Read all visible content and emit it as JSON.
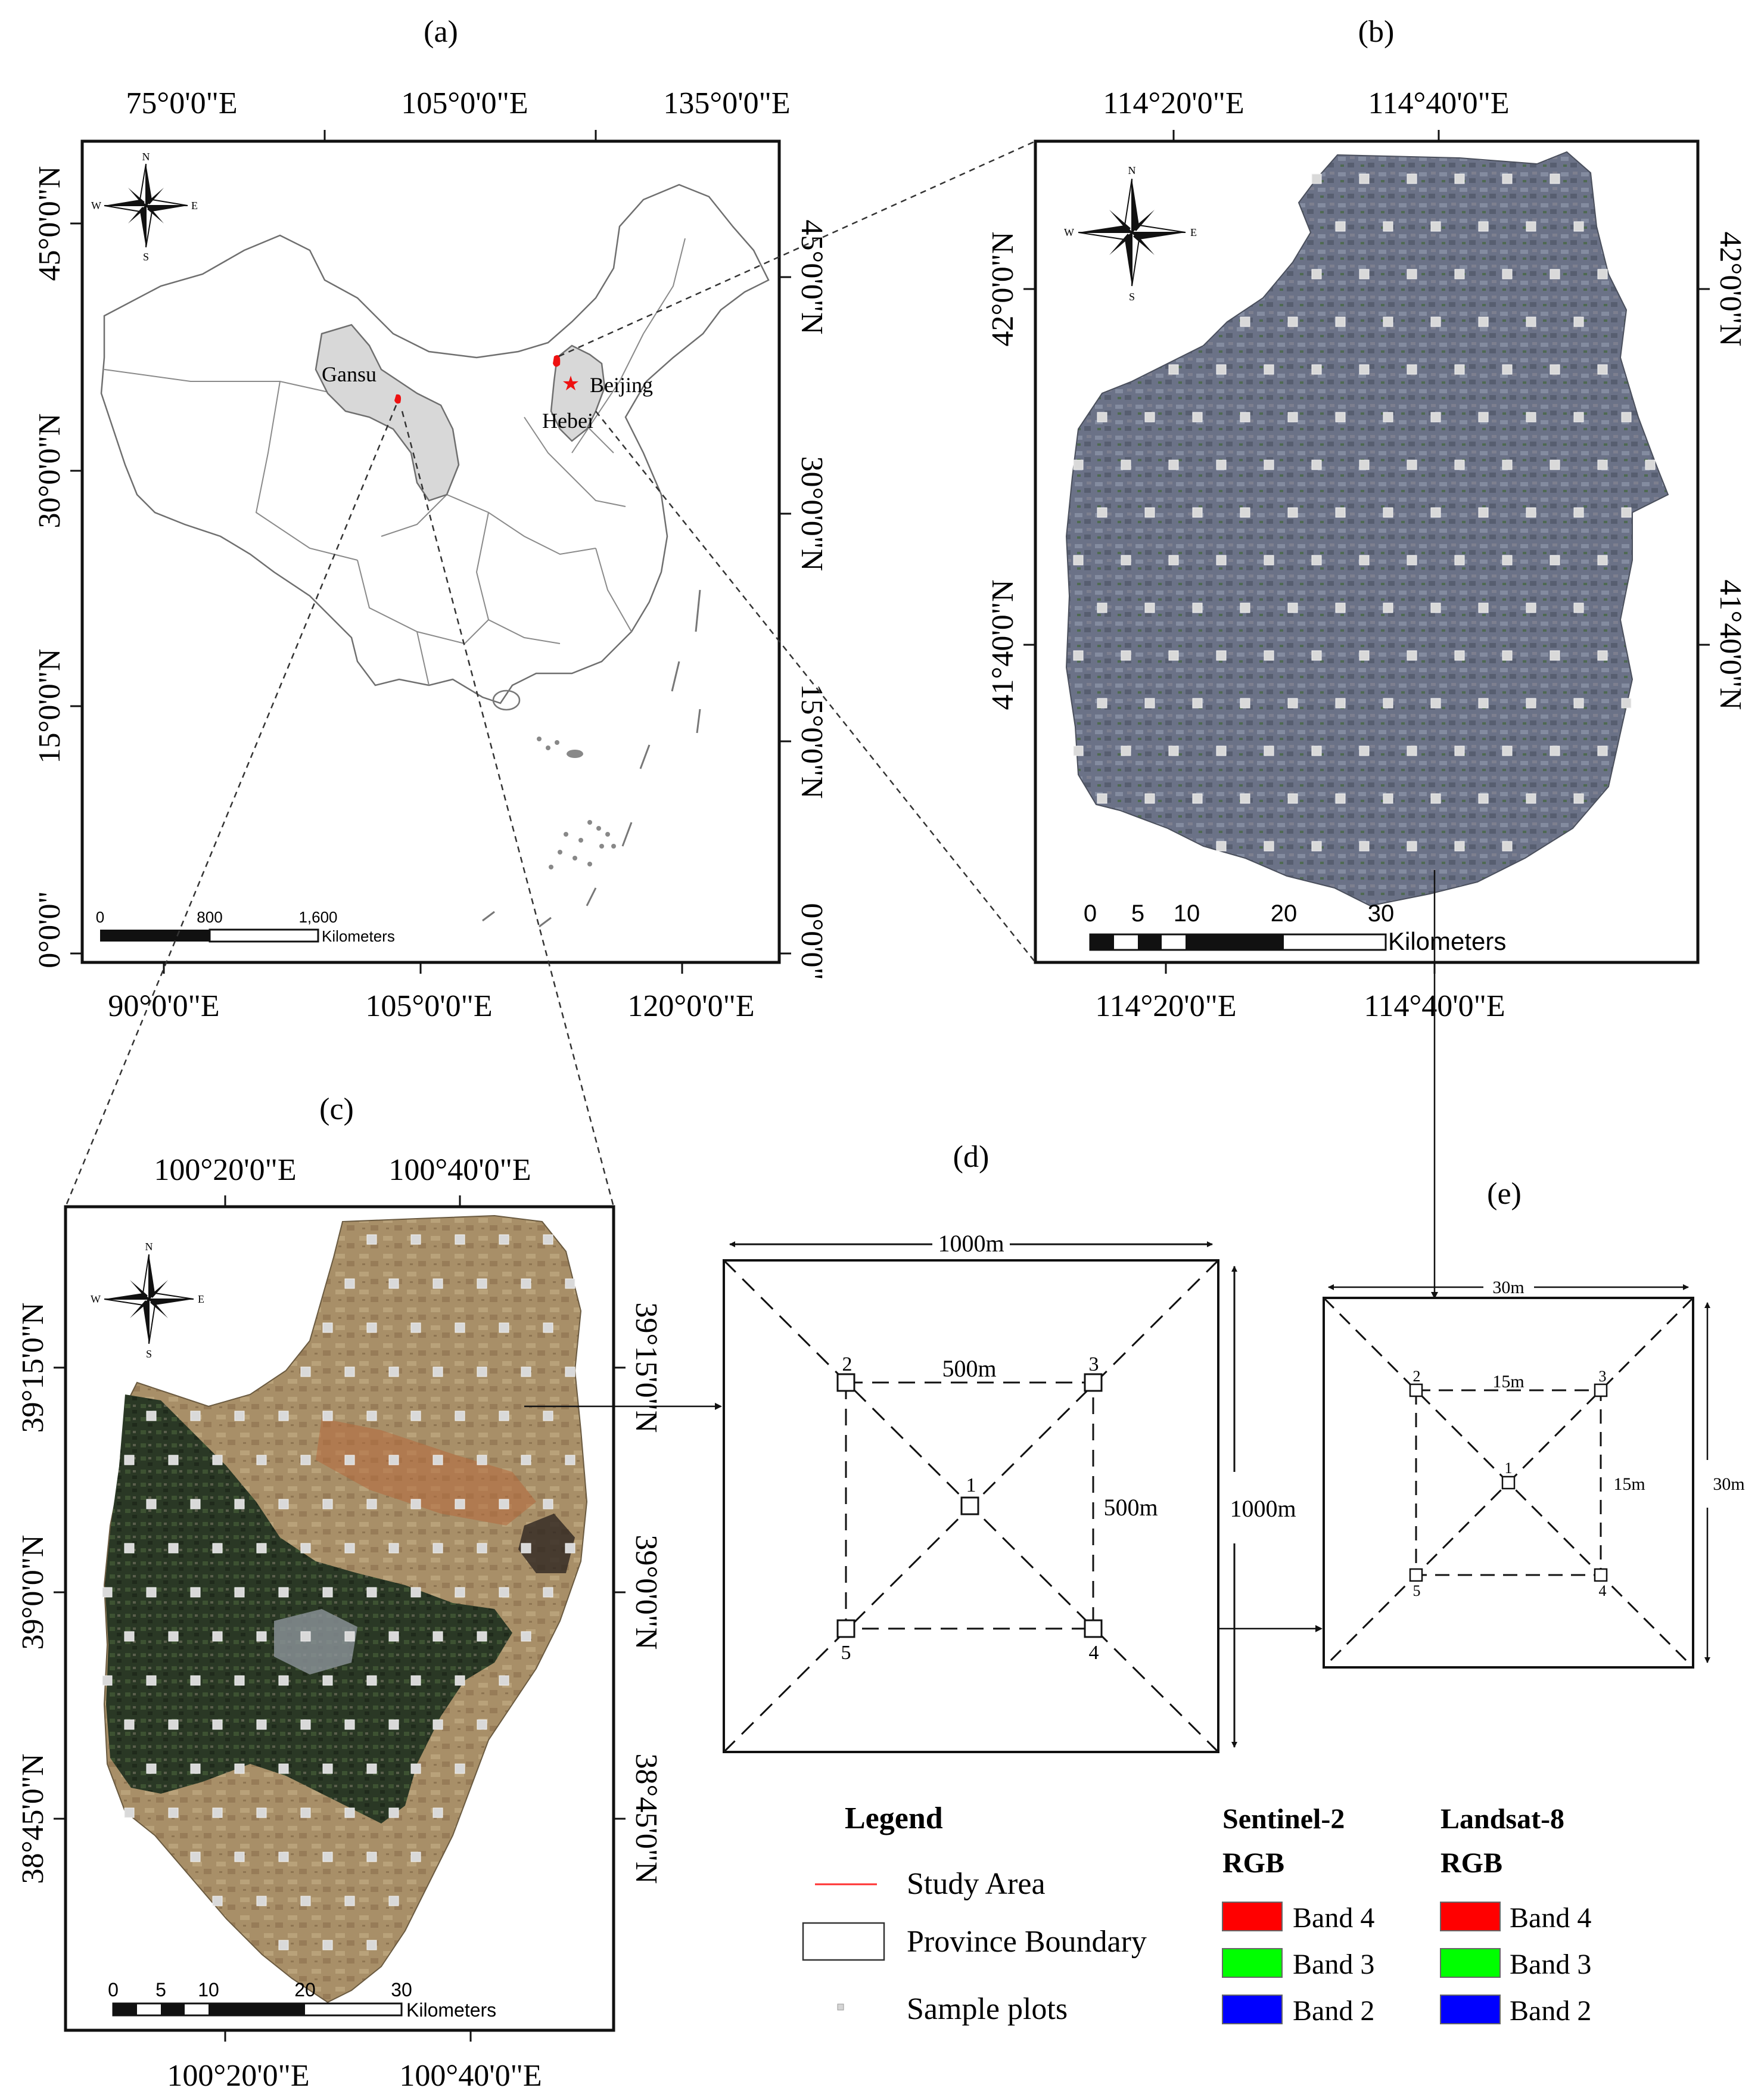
{
  "panels": {
    "a": {
      "label": "(a)",
      "top_lon": [
        "75°0'0\"E",
        "105°0'0\"E",
        "135°0'0\"E"
      ],
      "bottom_lon": [
        "90°0'0\"E",
        "105°0'0\"E",
        "120°0'0\"E"
      ],
      "left_lat": [
        "45°0'0\"N",
        "30°0'0\"N",
        "15°0'0\"N",
        "0°0'0\""
      ],
      "right_lat": [
        "45°0'0\"N",
        "30°0'0\"N",
        "15°0'0\"N",
        "0°0'0\""
      ],
      "places": {
        "gansu": "Gansu",
        "beijing": "Beijing",
        "hebei": "Hebei"
      },
      "scale": {
        "ticks": [
          "0",
          "800",
          "1,600"
        ],
        "unit": "Kilometers"
      },
      "compass": {
        "n": "N",
        "s": "S",
        "e": "E",
        "w": "W"
      }
    },
    "b": {
      "label": "(b)",
      "top_lon": [
        "114°20'0\"E",
        "114°40'0\"E"
      ],
      "bottom_lon": [
        "114°20'0\"E",
        "114°40'0\"E"
      ],
      "left_lat": [
        "42°0'0\"N",
        "41°40'0\"N"
      ],
      "right_lat": [
        "42°0'0\"N",
        "41°40'0\"N"
      ],
      "scale": {
        "ticks": [
          "0",
          "5",
          "10",
          "20",
          "30"
        ],
        "unit": "Kilometers"
      },
      "compass": {
        "n": "N",
        "s": "S",
        "e": "E",
        "w": "W"
      }
    },
    "c": {
      "label": "(c)",
      "top_lon": [
        "100°20'0\"E",
        "100°40'0\"E"
      ],
      "bottom_lon": [
        "100°20'0\"E",
        "100°40'0\"E"
      ],
      "left_lat": [
        "39°15'0\"N",
        "39°0'0\"N",
        "38°45'0\"N"
      ],
      "right_lat": [
        "39°15'0\"N",
        "39°0'0\"N",
        "38°45'0\"N"
      ],
      "scale": {
        "ticks": [
          "0",
          "5",
          "10",
          "20",
          "30"
        ],
        "unit": "Kilometers"
      },
      "compass": {
        "n": "N",
        "s": "S",
        "e": "E",
        "w": "W"
      }
    },
    "d": {
      "label": "(d)",
      "outer": "1000m",
      "outer_side": "1000m",
      "inner_top": "500m",
      "inner_side": "500m",
      "plots": [
        "1",
        "2",
        "3",
        "4",
        "5"
      ]
    },
    "e": {
      "label": "(e)",
      "outer": "30m",
      "outer_side": "30m",
      "inner_top": "15m",
      "inner_side": "15m",
      "plots": [
        "1",
        "2",
        "3",
        "4",
        "5"
      ]
    }
  },
  "legend": {
    "title": "Legend",
    "items": [
      "Study Area",
      "Province Boundary",
      "Sample plots"
    ],
    "sentinel": {
      "title1": "Sentinel-2",
      "title2": "RGB",
      "bands": [
        "Band 4",
        "Band 3",
        "Band 2"
      ]
    },
    "landsat": {
      "title1": "Landsat-8",
      "title2": "RGB",
      "bands": [
        "Band 4",
        "Band 3",
        "Band 2"
      ]
    },
    "band_colors": [
      "#ff0000",
      "#00ff00",
      "#0000ff"
    ],
    "study_area_color": "#ff3030"
  },
  "colors": {
    "province_fill_highlight": "#d8d8d8",
    "study_marker": "#ee1111",
    "map_b_tone": "#6c7386",
    "map_c_desert": "#a8906a",
    "map_c_oasis": "#2c3a26"
  }
}
